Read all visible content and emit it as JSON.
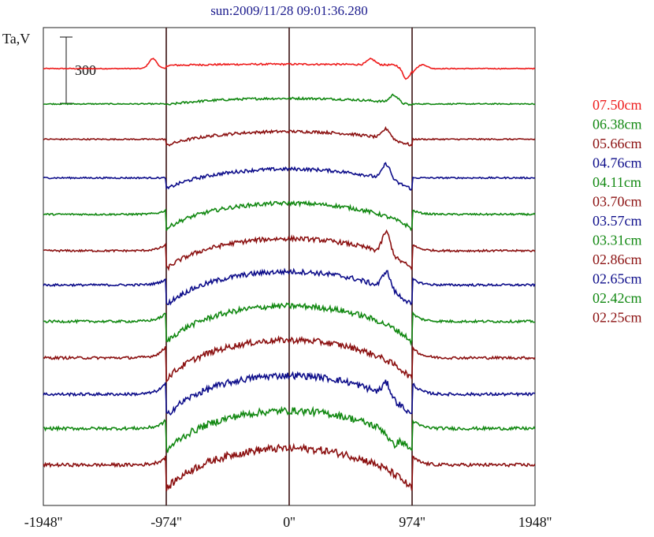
{
  "chart_data": {
    "type": "line",
    "title": "sun:2009/11/28 09:01:36.280",
    "ylabel": "Ta,V",
    "scale_bar_label": "300",
    "xlim": [
      -1948,
      1948
    ],
    "x_ticks": [
      -1948,
      -974,
      0,
      974,
      1948
    ],
    "x_tick_labels": [
      "-1948''",
      "-974''",
      "0''",
      "974''",
      "1948''"
    ],
    "vertical_lines_at": [
      -974,
      0,
      974
    ],
    "grid": false,
    "legend_position": "right",
    "series": [
      {
        "name": "07.50cm",
        "color": "#ee1c1c",
        "offset_V": 1950,
        "limb_V": 0,
        "disk_base_V": 10,
        "disk_peak_V": 20,
        "features": [
          {
            "x": -1080,
            "V": 45
          },
          {
            "x": 650,
            "V": 25
          },
          {
            "x": 930,
            "V": -60
          },
          {
            "x": 1060,
            "V": 18
          }
        ]
      },
      {
        "name": "06.38cm",
        "color": "#118811",
        "offset_V": 1790,
        "limb_V": 0,
        "disk_base_V": -25,
        "disk_peak_V": 25,
        "features": [
          {
            "x": 830,
            "V": 35
          }
        ]
      },
      {
        "name": "05.66cm",
        "color": "#8b1010",
        "offset_V": 1630,
        "limb_V": 0,
        "disk_base_V": -70,
        "disk_peak_V": 35,
        "features": [
          {
            "x": 770,
            "V": 45
          }
        ]
      },
      {
        "name": "04.76cm",
        "color": "#0d0d8a",
        "offset_V": 1455,
        "limb_V": 0,
        "disk_base_V": -110,
        "disk_peak_V": 40,
        "features": [
          {
            "x": 770,
            "V": 70
          }
        ]
      },
      {
        "name": "04.11cm",
        "color": "#118811",
        "offset_V": 1290,
        "limb_V": 20,
        "disk_base_V": -140,
        "disk_peak_V": 50,
        "features": []
      },
      {
        "name": "03.70cm",
        "color": "#8b1010",
        "offset_V": 1125,
        "limb_V": 30,
        "disk_base_V": -170,
        "disk_peak_V": 55,
        "features": [
          {
            "x": 770,
            "V": 100
          }
        ]
      },
      {
        "name": "03.57cm",
        "color": "#0d0d8a",
        "offset_V": 970,
        "limb_V": 30,
        "disk_base_V": -190,
        "disk_peak_V": 60,
        "features": [
          {
            "x": 770,
            "V": 80
          }
        ]
      },
      {
        "name": "03.31cm",
        "color": "#118811",
        "offset_V": 805,
        "limb_V": 40,
        "disk_base_V": -200,
        "disk_peak_V": 70,
        "features": []
      },
      {
        "name": "02.86cm",
        "color": "#8b1010",
        "offset_V": 640,
        "limb_V": 55,
        "disk_base_V": -210,
        "disk_peak_V": 80,
        "features": []
      },
      {
        "name": "02.65cm",
        "color": "#0d0d8a",
        "offset_V": 475,
        "limb_V": 55,
        "disk_base_V": -215,
        "disk_peak_V": 85,
        "features": [
          {
            "x": 770,
            "V": 60
          }
        ]
      },
      {
        "name": "02.42cm",
        "color": "#118811",
        "offset_V": 320,
        "limb_V": 40,
        "disk_base_V": -220,
        "disk_peak_V": 80,
        "features": [
          {
            "x": 820,
            "V": -40
          }
        ]
      },
      {
        "name": "02.25cm",
        "color": "#8b1010",
        "offset_V": 155,
        "limb_V": 40,
        "disk_base_V": -230,
        "disk_peak_V": 75,
        "features": []
      }
    ]
  }
}
